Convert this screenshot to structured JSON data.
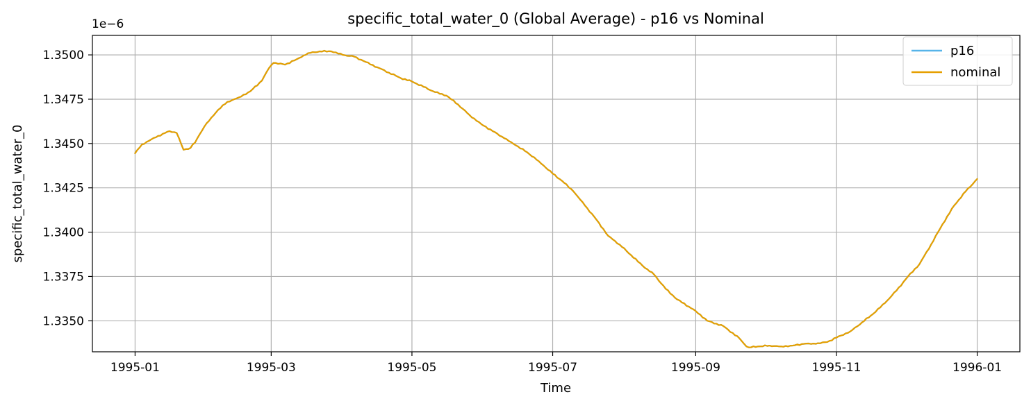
{
  "chart_data": {
    "type": "line",
    "title": "specific_total_water_0 (Global Average) - p16 vs Nominal",
    "xlabel": "Time",
    "ylabel": "specific_total_water_0",
    "y_offset_label": "1e−6",
    "x_tick_labels": [
      "1995-01",
      "1995-03",
      "1995-05",
      "1995-07",
      "1995-09",
      "1995-11",
      "1996-01"
    ],
    "x_tick_days": [
      0,
      59,
      120,
      181,
      243,
      304,
      365
    ],
    "xlim_days": [
      -18.5,
      383.5
    ],
    "y_tick_labels": [
      "1.3350",
      "1.3375",
      "1.3400",
      "1.3425",
      "1.3450",
      "1.3475",
      "1.3500"
    ],
    "y_tick_values": [
      1.335,
      1.3375,
      1.34,
      1.3425,
      1.345,
      1.3475,
      1.35
    ],
    "ylim": [
      1.33325,
      1.3511
    ],
    "y_unit_scale": "1e-6",
    "grid": true,
    "legend_position": "top-right",
    "x_units": "days since 1995-01-01",
    "series": [
      {
        "name": "p16",
        "color": "#56B4E9",
        "x": [
          0,
          3,
          6,
          9,
          12,
          15,
          18,
          21,
          24,
          25,
          26,
          27,
          30,
          33,
          36,
          40,
          45,
          50,
          55,
          58,
          60,
          65,
          70,
          75,
          80,
          85,
          90,
          95,
          100,
          105,
          110,
          115,
          120,
          125,
          130,
          135,
          140,
          145,
          150,
          155,
          160,
          165,
          170,
          175,
          181,
          185,
          190,
          195,
          200,
          205,
          210,
          215,
          220,
          225,
          230,
          235,
          240,
          243,
          248,
          255,
          262,
          265,
          266,
          270,
          275,
          280,
          285,
          290,
          295,
          300,
          304,
          310,
          315,
          320,
          325,
          330,
          335,
          340,
          345,
          350,
          355,
          360,
          365
        ],
        "values": [
          1.34445,
          1.34495,
          1.34515,
          1.34535,
          1.34555,
          1.3457,
          1.3456,
          1.34465,
          1.34475,
          1.34495,
          1.34505,
          1.3453,
          1.34595,
          1.34645,
          1.3469,
          1.34735,
          1.3476,
          1.34795,
          1.34855,
          1.34925,
          1.34955,
          1.34945,
          1.34975,
          1.3501,
          1.3502,
          1.3502,
          1.35,
          1.3499,
          1.3496,
          1.3493,
          1.349,
          1.3487,
          1.3485,
          1.3482,
          1.3479,
          1.3477,
          1.3472,
          1.3466,
          1.3461,
          1.3457,
          1.3453,
          1.3449,
          1.3445,
          1.344,
          1.3433,
          1.3429,
          1.3423,
          1.3415,
          1.3407,
          1.3398,
          1.3393,
          1.3387,
          1.3381,
          1.3376,
          1.3368,
          1.3362,
          1.3358,
          1.33555,
          1.335,
          1.3347,
          1.334,
          1.33355,
          1.3335,
          1.33355,
          1.3336,
          1.33355,
          1.3336,
          1.3337,
          1.3337,
          1.3338,
          1.33405,
          1.3344,
          1.3349,
          1.3354,
          1.336,
          1.3367,
          1.3375,
          1.3382,
          1.3393,
          1.34045,
          1.3415,
          1.3423,
          1.343
        ]
      },
      {
        "name": "nominal",
        "color": "#E69F00",
        "x": [
          0,
          3,
          6,
          9,
          12,
          15,
          18,
          21,
          24,
          25,
          26,
          27,
          30,
          33,
          36,
          40,
          45,
          50,
          55,
          58,
          60,
          65,
          70,
          75,
          80,
          85,
          90,
          95,
          100,
          105,
          110,
          115,
          120,
          125,
          130,
          135,
          140,
          145,
          150,
          155,
          160,
          165,
          170,
          175,
          181,
          185,
          190,
          195,
          200,
          205,
          210,
          215,
          220,
          225,
          230,
          235,
          240,
          243,
          248,
          255,
          262,
          265,
          266,
          270,
          275,
          280,
          285,
          290,
          295,
          300,
          304,
          310,
          315,
          320,
          325,
          330,
          335,
          340,
          345,
          350,
          355,
          360,
          365
        ],
        "values": [
          1.34445,
          1.34495,
          1.34515,
          1.34535,
          1.34555,
          1.3457,
          1.3456,
          1.34465,
          1.34475,
          1.34495,
          1.34505,
          1.3453,
          1.34595,
          1.34645,
          1.3469,
          1.34735,
          1.3476,
          1.34795,
          1.34855,
          1.34925,
          1.34955,
          1.34945,
          1.34975,
          1.3501,
          1.3502,
          1.3502,
          1.35,
          1.3499,
          1.3496,
          1.3493,
          1.349,
          1.3487,
          1.3485,
          1.3482,
          1.3479,
          1.3477,
          1.3472,
          1.3466,
          1.3461,
          1.3457,
          1.3453,
          1.3449,
          1.3445,
          1.344,
          1.3433,
          1.3429,
          1.3423,
          1.3415,
          1.3407,
          1.3398,
          1.3393,
          1.3387,
          1.3381,
          1.3376,
          1.3368,
          1.3362,
          1.3358,
          1.33555,
          1.335,
          1.3347,
          1.334,
          1.33355,
          1.3335,
          1.33355,
          1.3336,
          1.33355,
          1.3336,
          1.3337,
          1.3337,
          1.3338,
          1.33405,
          1.3344,
          1.3349,
          1.3354,
          1.336,
          1.3367,
          1.3375,
          1.3382,
          1.3393,
          1.34045,
          1.3415,
          1.3423,
          1.343
        ]
      }
    ]
  }
}
